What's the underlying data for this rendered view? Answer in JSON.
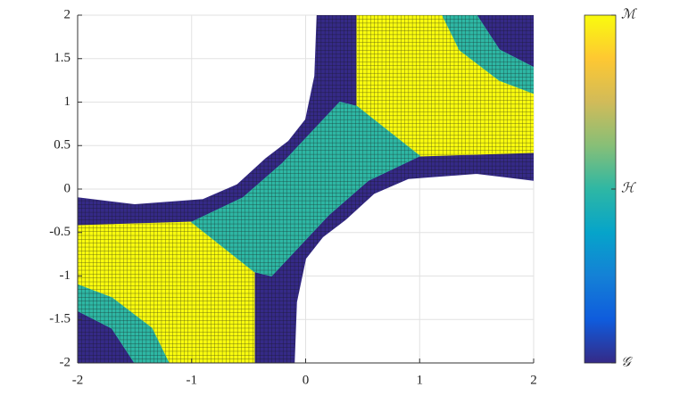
{
  "chart_data": {
    "type": "region",
    "xlim": [
      -2,
      2
    ],
    "ylim": [
      -2,
      2
    ],
    "xticks": [
      -2,
      -1,
      0,
      1,
      2
    ],
    "yticks": [
      -2,
      -1.5,
      -1,
      -0.5,
      0,
      0.5,
      1,
      1.5,
      2
    ],
    "grid": true,
    "clim": [
      0,
      2
    ],
    "cticks": [
      {
        "value": 0,
        "label": "𝒢"
      },
      {
        "value": 1,
        "label": "ℋ"
      },
      {
        "value": 2,
        "label": "ℳ"
      }
    ],
    "colormap": [
      "#352a87",
      "#0f5cdd",
      "#1481d6",
      "#06a4ca",
      "#2eb7a4",
      "#87bf77",
      "#d1bb59",
      "#fec832",
      "#f9fb0e"
    ],
    "regions": [
      {
        "value": 0,
        "x": [
          0.1,
          2,
          2,
          1.5,
          0.9,
          0.6,
          0.35,
          0.15,
          0,
          -0.08,
          -0.1,
          -2,
          -2,
          -1.5,
          -0.9,
          -0.6,
          -0.35,
          -0.15,
          0,
          0.08
        ],
        "y": [
          2,
          2,
          0.1,
          0.18,
          0.12,
          -0.05,
          -0.35,
          -0.55,
          -0.8,
          -1.3,
          -2,
          -2,
          -0.1,
          -0.18,
          -0.12,
          0.05,
          0.35,
          0.55,
          0.8,
          1.3
        ]
      },
      {
        "value": 2,
        "x": [
          0.45,
          1.2,
          1.35,
          1.7,
          2,
          2,
          1,
          0.45
        ],
        "y": [
          2,
          2,
          1.6,
          1.25,
          1.1,
          0.42,
          0.38,
          0.95
        ]
      },
      {
        "value": 2,
        "x": [
          -0.45,
          -1.2,
          -1.35,
          -1.7,
          -2,
          -2,
          -1,
          -0.45
        ],
        "y": [
          -2,
          -2,
          -1.6,
          -1.25,
          -1.1,
          -0.42,
          -0.38,
          -0.95
        ]
      },
      {
        "value": 1,
        "x": [
          1.2,
          1.5,
          1.7,
          2,
          2,
          1.7,
          1.35
        ],
        "y": [
          2,
          2,
          1.6,
          1.4,
          1.1,
          1.25,
          1.6
        ]
      },
      {
        "value": 1,
        "x": [
          -1.2,
          -1.5,
          -1.7,
          -2,
          -2,
          -1.7,
          -1.35
        ],
        "y": [
          -2,
          -2,
          -1.6,
          -1.4,
          -1.1,
          -1.25,
          -1.6
        ]
      },
      {
        "value": 1,
        "x": [
          0.3,
          0.45,
          1,
          0.55,
          0.2,
          -0.3,
          -0.45,
          -1,
          -0.55,
          -0.2
        ],
        "y": [
          1,
          0.95,
          0.38,
          0.1,
          -0.3,
          -1,
          -0.95,
          -0.38,
          -0.1,
          0.3
        ]
      }
    ]
  }
}
